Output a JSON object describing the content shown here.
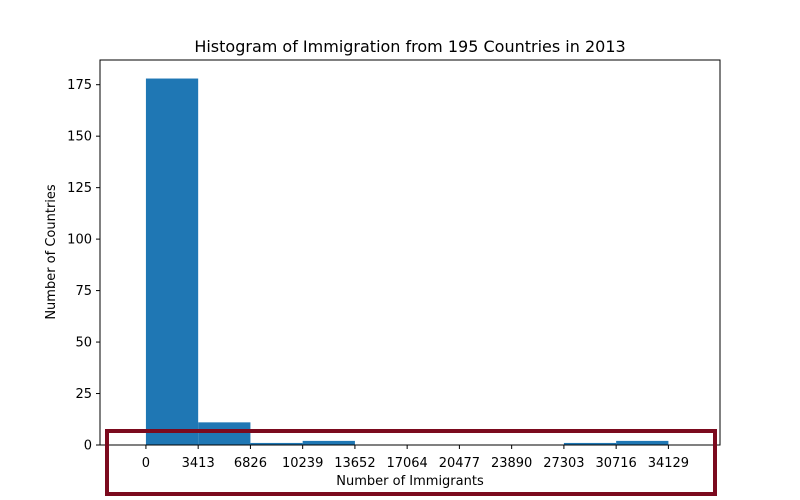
{
  "chart_data": {
    "type": "bar",
    "title": "Histogram of Immigration from 195 Countries in 2013",
    "xlabel": "Number of Immigrants",
    "ylabel": "Number of Countries",
    "bin_edges": [
      0,
      3413,
      6826,
      10239,
      13652,
      17064,
      20477,
      23890,
      27303,
      30716,
      34129
    ],
    "values": [
      178,
      11,
      1,
      2,
      0,
      0,
      0,
      0,
      1,
      2
    ],
    "xticks": [
      "0",
      "3413",
      "6826",
      "10239",
      "13652",
      "17064",
      "20477",
      "23890",
      "27303",
      "30716",
      "34129"
    ],
    "yticks": [
      0,
      25,
      50,
      75,
      100,
      125,
      150,
      175
    ],
    "xlim": [
      -3000,
      37500
    ],
    "ylim": [
      0,
      187
    ],
    "bar_color": "#1f77b4",
    "grid": false,
    "annotation_box_color": "#7b0a1e"
  }
}
